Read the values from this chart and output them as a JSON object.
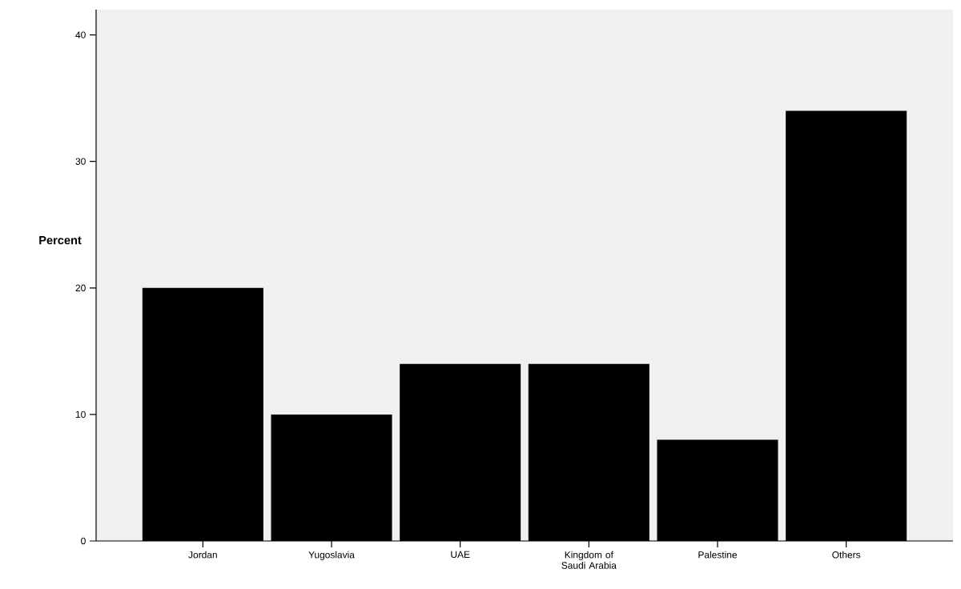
{
  "chart_data": {
    "type": "bar",
    "ylabel": "Percent",
    "categories": [
      "Jordan",
      "Yugoslavia",
      "UAE",
      "Kingdom of Saudi Arabia",
      "Palestine",
      "Others"
    ],
    "values": [
      20,
      10,
      14,
      14,
      8,
      34
    ],
    "color": "#000000",
    "ylim": [
      0,
      42
    ],
    "yticks": [
      0,
      10,
      20,
      30,
      40
    ],
    "grid": false
  }
}
